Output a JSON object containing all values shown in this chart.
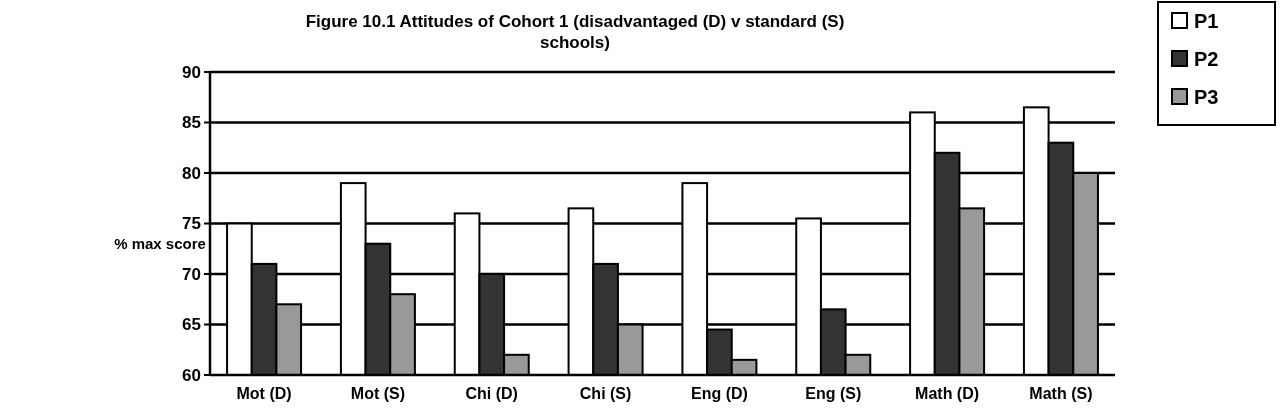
{
  "chart_data": {
    "type": "bar",
    "title": "Figure 10.1 Attitudes of Cohort 1 (disadvantaged (D) v standard (S) schools)",
    "ylabel": "% max score",
    "categories": [
      "Mot (D)",
      "Mot (S)",
      "Chi (D)",
      "Chi (S)",
      "Eng (D)",
      "Eng (S)",
      "Math (D)",
      "Math (S)"
    ],
    "series": [
      {
        "name": "P1",
        "color": "#ffffff",
        "values": [
          75,
          79,
          76,
          76.5,
          79,
          75.5,
          86,
          86.5
        ]
      },
      {
        "name": "P2",
        "color": "#333333",
        "values": [
          71,
          73,
          70,
          71,
          64.5,
          66.5,
          82,
          83
        ]
      },
      {
        "name": "P3",
        "color": "#999999",
        "values": [
          67,
          68,
          62,
          65,
          61.5,
          62,
          76.5,
          80
        ]
      }
    ],
    "ylim": [
      60,
      90
    ],
    "yticks": [
      60,
      65,
      70,
      75,
      80,
      85,
      90
    ],
    "grid": "y",
    "legend": "top right"
  }
}
